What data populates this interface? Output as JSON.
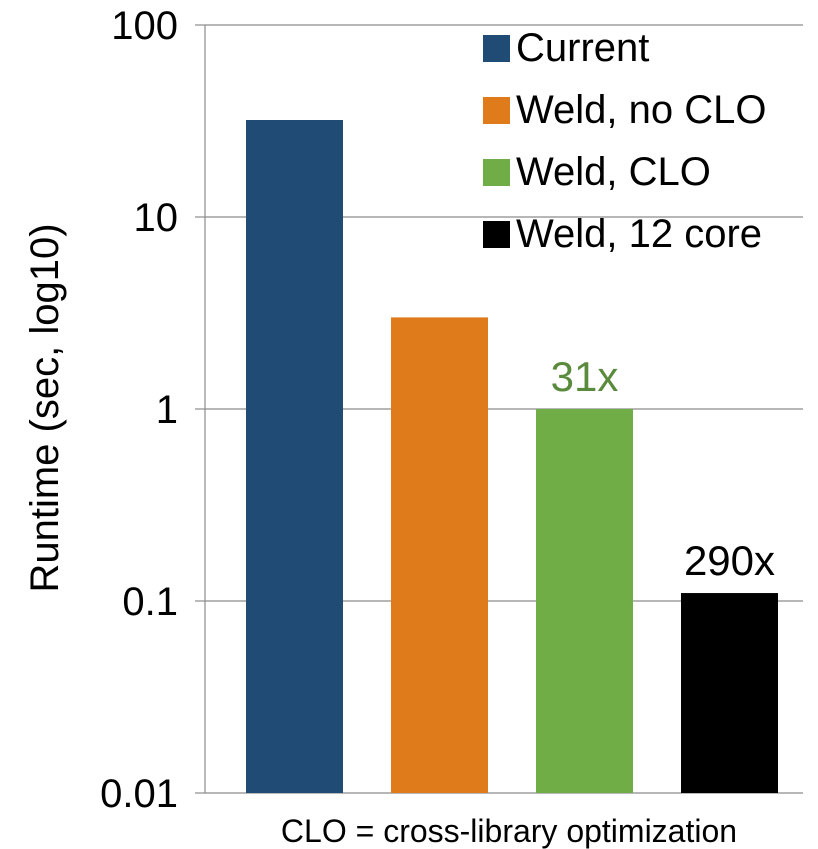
{
  "chart_data": {
    "type": "bar",
    "title": "",
    "ylabel": "Runtime (sec, log10)",
    "xlabel": "CLO = cross-library optimization",
    "yscale": "log10",
    "ylim": [
      0.01,
      100
    ],
    "yticks": [
      0.01,
      0.1,
      1,
      10,
      100
    ],
    "ytick_labels": [
      "0.01",
      "0.1",
      "1",
      "10",
      "100"
    ],
    "grid": "horizontal",
    "legend_position": "top-right",
    "series": [
      {
        "name": "Current",
        "value": 32,
        "color": "#1f4b74"
      },
      {
        "name": "Weld, no CLO",
        "value": 3,
        "color": "#e07b1c"
      },
      {
        "name": "Weld, CLO",
        "value": 1,
        "color": "#70ad47",
        "annotation": "31x",
        "annotation_color": "#5a8a3c"
      },
      {
        "name": "Weld, 12 core",
        "value": 0.11,
        "color": "#000000",
        "annotation": "290x",
        "annotation_color": "#000000"
      }
    ]
  }
}
